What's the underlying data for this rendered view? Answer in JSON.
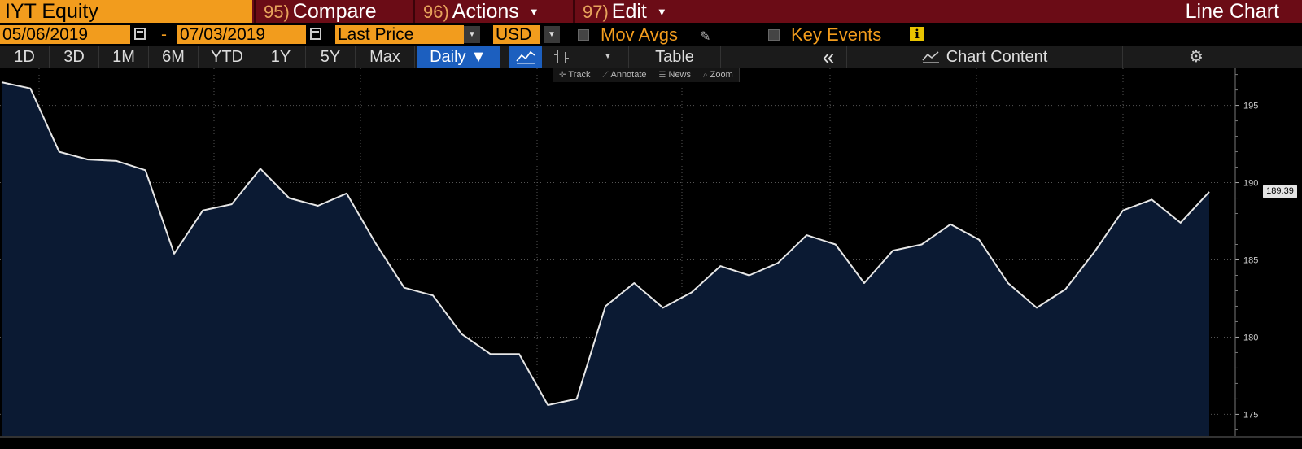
{
  "titlebar": {
    "ticker": "IYT Equity",
    "compare": {
      "num": "95)",
      "label": "Compare"
    },
    "actions": {
      "num": "96)",
      "label": "Actions"
    },
    "edit": {
      "num": "97)",
      "label": "Edit"
    },
    "chart_type": "Line Chart"
  },
  "settings": {
    "start_date": "05/06/2019",
    "dash": "-",
    "end_date": "07/03/2019",
    "field": "Last Price",
    "currency": "USD",
    "mov_avgs": "Mov Avgs",
    "key_events": "Key Events",
    "info": "i"
  },
  "range": {
    "buttons": [
      "1D",
      "3D",
      "1M",
      "6M",
      "YTD",
      "1Y",
      "5Y",
      "Max"
    ],
    "frequency": "Daily",
    "table": "Table",
    "collapse": "«",
    "chart_content": "Chart Content",
    "gear": "⚙"
  },
  "mini_toolbar": {
    "track": "Track",
    "annotate": "Annotate",
    "news": "News",
    "zoom": "Zoom"
  },
  "colors": {
    "ticker_bg": "#f29c1d",
    "titlebar_bg": "#6b0c16",
    "active_blue": "#1c5fbf",
    "area_fill": "#0b1a33",
    "line": "#e6e6e6"
  },
  "chart_data": {
    "type": "area",
    "y_ticks": [
      195,
      190,
      185,
      180,
      175
    ],
    "last_price_label": "189.39",
    "ylim": [
      173.6,
      197.4
    ],
    "grid": true,
    "values": [
      196.5,
      196.1,
      192.0,
      191.5,
      191.4,
      190.8,
      185.4,
      188.2,
      188.6,
      190.9,
      189.0,
      188.5,
      189.3,
      186.1,
      183.2,
      182.7,
      180.2,
      178.9,
      178.9,
      175.6,
      176.0,
      182.0,
      183.5,
      181.9,
      182.9,
      184.6,
      184.0,
      184.8,
      186.6,
      186.0,
      183.5,
      185.6,
      186.0,
      187.3,
      186.3,
      183.5,
      181.9,
      183.1,
      185.5,
      188.2,
      188.9,
      187.4,
      189.4
    ]
  }
}
